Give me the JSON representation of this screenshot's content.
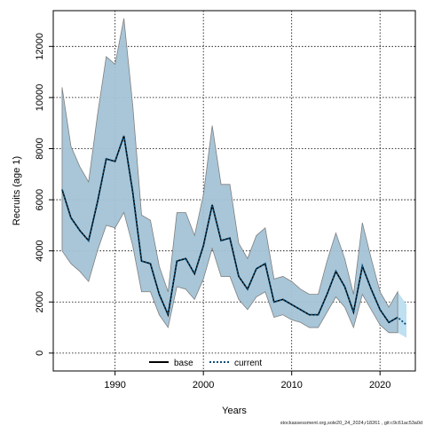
{
  "chart_data": {
    "type": "area",
    "xlabel": "Years",
    "ylabel": "Recruits (age 1)",
    "xlim": [
      1983,
      2024
    ],
    "ylim": [
      -700,
      13400
    ],
    "xticks": [
      1990,
      2000,
      2010,
      2020
    ],
    "yticks": [
      0,
      2000,
      4000,
      6000,
      8000,
      10000,
      12000
    ],
    "grid": true,
    "legend": {
      "placement": "bottom-center",
      "entries": [
        "base",
        "current"
      ]
    },
    "x": [
      1984,
      1985,
      1986,
      1987,
      1988,
      1989,
      1990,
      1991,
      1992,
      1993,
      1994,
      1995,
      1996,
      1997,
      1998,
      1999,
      2000,
      2001,
      2002,
      2003,
      2004,
      2005,
      2006,
      2007,
      2008,
      2009,
      2010,
      2011,
      2012,
      2013,
      2014,
      2015,
      2016,
      2017,
      2018,
      2019,
      2020,
      2021,
      2022,
      2023
    ],
    "series": [
      {
        "name": "base",
        "style": "solid",
        "color": "#000000",
        "values": [
          6400,
          5300,
          4800,
          4400,
          5900,
          7600,
          7500,
          8500,
          6300,
          3600,
          3500,
          2300,
          1500,
          3600,
          3700,
          3100,
          4200,
          5800,
          4400,
          4500,
          3000,
          2500,
          3300,
          3500,
          2000,
          2100,
          1900,
          1700,
          1500,
          1500,
          2300,
          3200,
          2600,
          1600,
          3400,
          2500,
          1700,
          1200,
          1400,
          null
        ],
        "lower": [
          4000,
          3500,
          3200,
          2800,
          4000,
          5000,
          4900,
          5500,
          4200,
          2400,
          2400,
          1500,
          1000,
          2600,
          2500,
          2100,
          2900,
          4100,
          3000,
          3000,
          2100,
          1700,
          2200,
          2400,
          1400,
          1500,
          1300,
          1200,
          1000,
          1000,
          1600,
          2200,
          1800,
          1000,
          2300,
          1700,
          1100,
          800,
          800,
          null
        ],
        "upper": [
          10400,
          8100,
          7300,
          6700,
          9300,
          11600,
          11300,
          13100,
          9700,
          5400,
          5200,
          3400,
          2400,
          5500,
          5500,
          4600,
          6200,
          8900,
          6600,
          6600,
          4300,
          3700,
          4600,
          4900,
          2900,
          3000,
          2800,
          2500,
          2300,
          2300,
          3600,
          4700,
          3700,
          2300,
          5100,
          3700,
          2400,
          1800,
          2400,
          null
        ]
      },
      {
        "name": "current",
        "style": "dotted",
        "color": "#0a4f7a",
        "values": [
          6400,
          5300,
          4800,
          4400,
          5900,
          7600,
          7500,
          8500,
          6300,
          3600,
          3500,
          2300,
          1500,
          3600,
          3700,
          3100,
          4200,
          5800,
          4400,
          4500,
          3000,
          2500,
          3300,
          3500,
          2000,
          2100,
          1900,
          1700,
          1500,
          1500,
          2300,
          3200,
          2600,
          1600,
          3400,
          2500,
          1700,
          1200,
          1400,
          1100
        ],
        "lower": [
          4000,
          3500,
          3200,
          2800,
          4000,
          5000,
          4900,
          5500,
          4200,
          2400,
          2400,
          1500,
          1000,
          2600,
          2500,
          2100,
          2900,
          4100,
          3000,
          3000,
          2100,
          1700,
          2200,
          2400,
          1400,
          1500,
          1300,
          1200,
          1000,
          1000,
          1600,
          2200,
          1800,
          1000,
          2300,
          1700,
          1100,
          800,
          800,
          600
        ],
        "upper": [
          10400,
          8100,
          7300,
          6700,
          9300,
          11600,
          11300,
          13100,
          9700,
          5400,
          5200,
          3400,
          2400,
          5500,
          5500,
          4600,
          6200,
          8900,
          6600,
          6600,
          4300,
          3700,
          4600,
          4900,
          2900,
          3000,
          2800,
          2500,
          2300,
          2300,
          3600,
          4700,
          3700,
          2300,
          5100,
          3700,
          2400,
          1800,
          2400,
          1900
        ]
      }
    ],
    "colors": {
      "band": "#a3c3d6",
      "band_edge": "#7f7f7f",
      "band_last": "#bfe0f0",
      "current_line": "#0a4f7a"
    },
    "footer": "stockassessment.org,sole20_24_2024,r18261 , git:c9c61ac53a0d"
  }
}
